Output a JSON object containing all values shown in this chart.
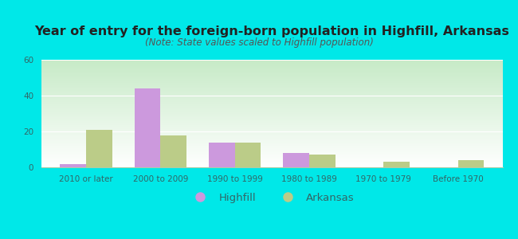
{
  "title": "Year of entry for the foreign-born population in Highfill, Arkansas",
  "subtitle": "(Note: State values scaled to Highfill population)",
  "categories": [
    "2010 or later",
    "2000 to 2009",
    "1990 to 1999",
    "1980 to 1989",
    "1970 to 1979",
    "Before 1970"
  ],
  "highfill_values": [
    2,
    44,
    14,
    8,
    0,
    0
  ],
  "arkansas_values": [
    21,
    18,
    14,
    7,
    3,
    4
  ],
  "highfill_color": "#cc99dd",
  "arkansas_color": "#bbcc88",
  "ylim": [
    0,
    60
  ],
  "yticks": [
    0,
    20,
    40,
    60
  ],
  "bar_width": 0.35,
  "background_outer": "#00e8e8",
  "plot_bg_left": "#c8eac8",
  "plot_bg_right": "#e8f5e8",
  "plot_bg_bottom": "#ffffff",
  "title_fontsize": 11.5,
  "subtitle_fontsize": 8.5,
  "tick_fontsize": 7.5,
  "legend_fontsize": 9.5,
  "text_color": "#336666"
}
